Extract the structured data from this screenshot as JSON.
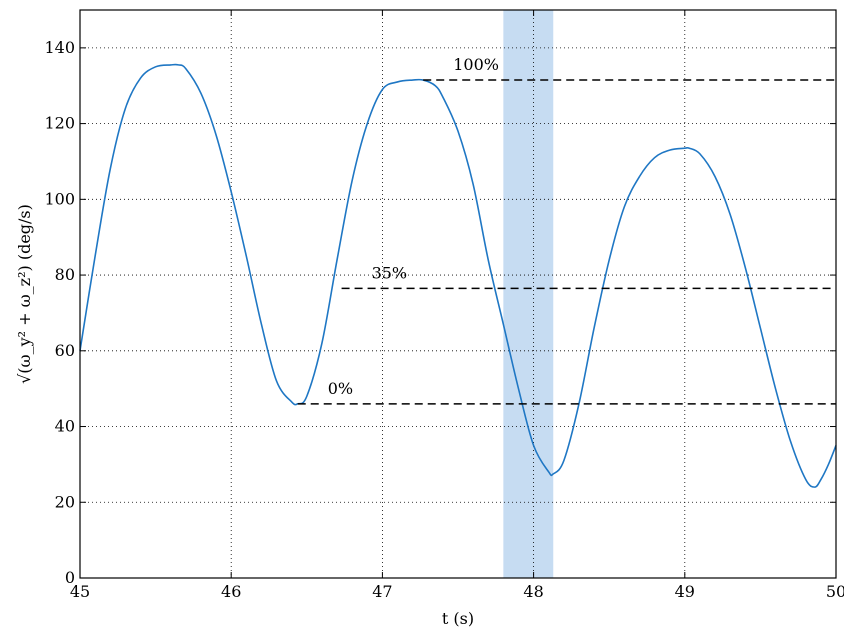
{
  "chart_data": {
    "type": "line",
    "xlabel": "t (s)",
    "ylabel": "√(ω_y² + ω_z²) (deg/s)",
    "xlim": [
      45,
      50
    ],
    "ylim": [
      0,
      150
    ],
    "grid": true,
    "x_ticks": [
      45,
      46,
      47,
      48,
      49,
      50
    ],
    "y_ticks": [
      0,
      20,
      40,
      60,
      80,
      100,
      120,
      140
    ],
    "x_tick_labels": [
      "45",
      "46",
      "47",
      "48",
      "49",
      "50"
    ],
    "y_tick_labels": [
      "0",
      "20",
      "40",
      "60",
      "80",
      "100",
      "120",
      "140"
    ],
    "colors": {
      "series": "#1f77c4",
      "highlight": "#c6dcf2",
      "reference": "#000000",
      "grid": "#000000"
    },
    "highlight_band": {
      "x0": 47.8,
      "x1": 48.13
    },
    "series": [
      {
        "x": [
          45.0,
          45.1,
          45.2,
          45.3,
          45.4,
          45.5,
          45.6,
          45.65,
          45.7,
          45.8,
          45.9,
          46.0,
          46.1,
          46.2,
          46.3,
          46.4,
          46.44,
          46.5,
          46.6,
          46.7,
          46.8,
          46.9,
          47.0,
          47.1,
          47.2,
          47.27,
          47.35,
          47.4,
          47.5,
          47.6,
          47.7,
          47.8,
          47.9,
          48.0,
          48.1,
          48.13,
          48.2,
          48.3,
          48.4,
          48.5,
          48.6,
          48.7,
          48.8,
          48.9,
          49.0,
          49.03,
          49.1,
          49.2,
          49.3,
          49.4,
          49.5,
          49.6,
          49.7,
          49.8,
          49.86,
          49.9,
          49.95,
          50.0
        ],
        "y": [
          60,
          85,
          108,
          124,
          132,
          135,
          135.5,
          135.5,
          134.5,
          128,
          117,
          102,
          85,
          67,
          52,
          46.5,
          46,
          48,
          62,
          84,
          105,
          120,
          129,
          131,
          131.5,
          131.5,
          130,
          127,
          118,
          104,
          84,
          67,
          50,
          35,
          28,
          27.5,
          31,
          46,
          66,
          84,
          98,
          106,
          111,
          113,
          113.5,
          113.5,
          112,
          106,
          96,
          82,
          66,
          50,
          36,
          26,
          24,
          26,
          30,
          35
        ]
      }
    ],
    "reference_lines": [
      {
        "label": "0%",
        "y": 46,
        "x_start": 46.44,
        "x_end": 50
      },
      {
        "label": "35%",
        "y": 76.5,
        "x_start": 46.73,
        "x_end": 50
      },
      {
        "label": "100%",
        "y": 131.5,
        "x_start": 47.27,
        "x_end": 50
      }
    ]
  }
}
